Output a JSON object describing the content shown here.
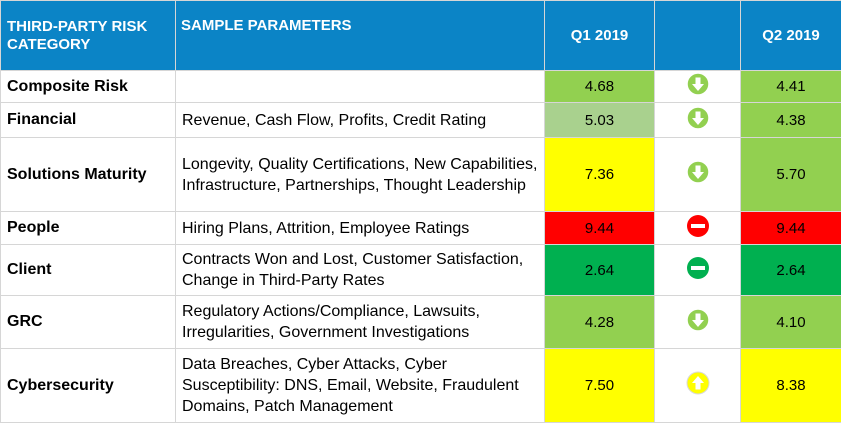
{
  "colors": {
    "header_bg": "#0b84c6",
    "green_light": "#92d050",
    "green_pale": "#a9d18e",
    "green_dark": "#00b050",
    "yellow": "#ffff00",
    "red": "#ff0000"
  },
  "header": {
    "category": "THIRD-PARTY RISK CATEGORY",
    "params": "SAMPLE PARAMETERS",
    "q1": "Q1 2019",
    "trend": "",
    "q2": "Q2 2019"
  },
  "rows": [
    {
      "category": "Composite Risk",
      "params": "",
      "q1": "4.68",
      "q1_color": "#92d050",
      "trend_icon": "arrow-down-icon",
      "q2": "4.41",
      "q2_color": "#92d050"
    },
    {
      "category": "Financial",
      "params": "Revenue, Cash Flow, Profits, Credit Rating",
      "q1": "5.03",
      "q1_color": "#a9d18e",
      "trend_icon": "arrow-down-icon",
      "q2": "4.38",
      "q2_color": "#92d050"
    },
    {
      "category": "Solutions Maturity",
      "params": "Longevity, Quality Certifications, New Capabilities, Infrastructure, Partnerships, Thought Leadership",
      "q1": "7.36",
      "q1_color": "#ffff00",
      "trend_icon": "arrow-down-icon",
      "q2": "5.70",
      "q2_color": "#92d050"
    },
    {
      "category": "People",
      "params": "Hiring Plans, Attrition, Employee Ratings",
      "q1": "9.44",
      "q1_color": "#ff0000",
      "trend_icon": "no-change-red-icon",
      "q2": "9.44",
      "q2_color": "#ff0000"
    },
    {
      "category": "Client",
      "params": "Contracts Won and Lost, Customer Satisfaction, Change in Third-Party Rates",
      "q1": "2.64",
      "q1_color": "#00b050",
      "trend_icon": "no-change-green-icon",
      "q2": "2.64",
      "q2_color": "#00b050"
    },
    {
      "category": "GRC",
      "params": "Regulatory Actions/Compliance, Lawsuits, Irregularities, Government Investigations",
      "q1": "4.28",
      "q1_color": "#92d050",
      "trend_icon": "arrow-down-icon",
      "q2": "4.10",
      "q2_color": "#92d050"
    },
    {
      "category": "Cybersecurity",
      "params": "Data Breaches, Cyber Attacks, Cyber Susceptibility: DNS, Email, Website, Fraudulent Domains, Patch Management",
      "q1": "7.50",
      "q1_color": "#ffff00",
      "trend_icon": "arrow-up-icon",
      "q2": "8.38",
      "q2_color": "#ffff00"
    }
  ]
}
